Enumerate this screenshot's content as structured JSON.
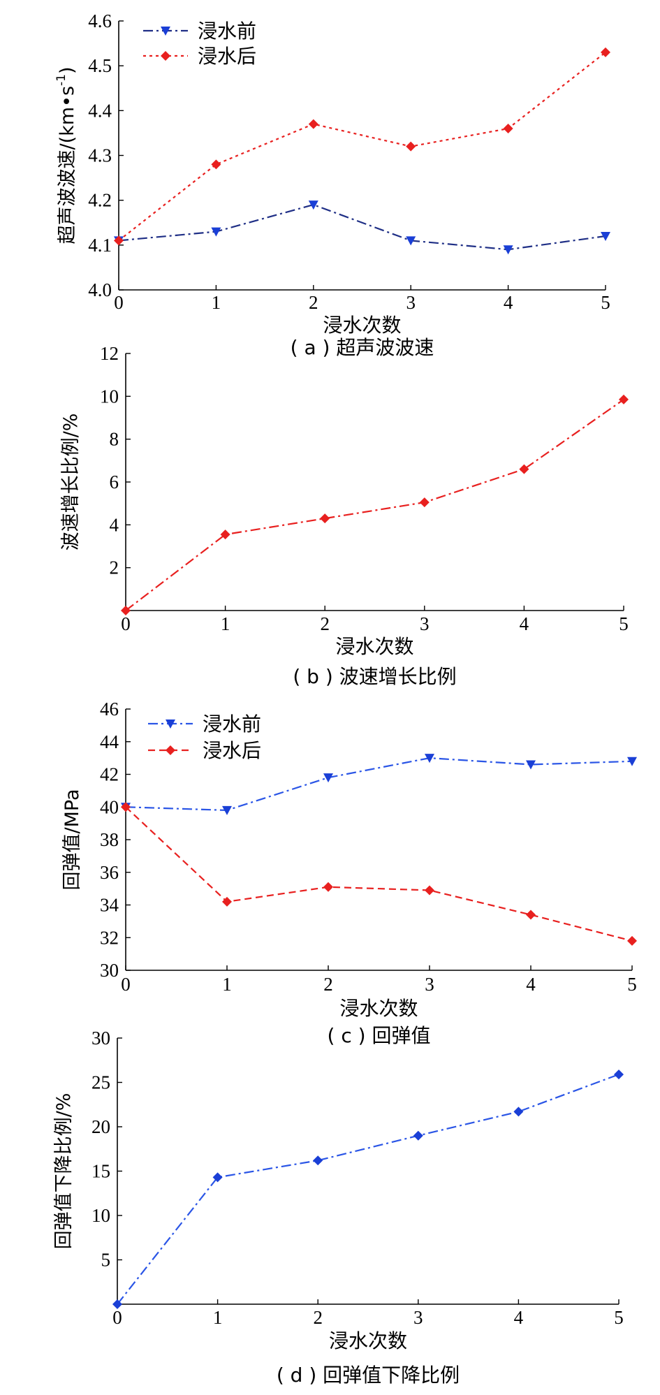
{
  "chart_data": [
    {
      "type": "line",
      "caption": "( a ) 超声波波速",
      "xlabel": "浸水次数",
      "ylabel": "超声波波速/(km•s",
      "ylabel_sup": "-1",
      "ylabel_close": ")",
      "x": [
        0,
        1,
        2,
        3,
        4,
        5
      ],
      "xlim": [
        0,
        5
      ],
      "ylim": [
        4.0,
        4.6
      ],
      "xticks": [
        "0",
        "1",
        "2",
        "3",
        "4",
        "5"
      ],
      "yticks": [
        "4.0",
        "4.1",
        "4.2",
        "4.3",
        "4.4",
        "4.5",
        "4.6"
      ],
      "legend": "top-left",
      "grid": false,
      "series": [
        {
          "name": "浸水前",
          "values": [
            4.11,
            4.13,
            4.19,
            4.11,
            4.09,
            4.12
          ],
          "color": "#1a3fd6",
          "line_color": "#1f2f86",
          "marker": "triangle-down",
          "dash": "dash-dot"
        },
        {
          "name": "浸水后",
          "values": [
            4.11,
            4.28,
            4.37,
            4.32,
            4.36,
            4.53
          ],
          "color": "#e8201f",
          "line_color": "#e8201f",
          "marker": "diamond",
          "dash": "dot"
        }
      ]
    },
    {
      "type": "line",
      "caption": "( b ) 波速增长比例",
      "xlabel": "浸水次数",
      "ylabel": "波速增长比例/%",
      "x": [
        0,
        1,
        2,
        3,
        4,
        5
      ],
      "xlim": [
        0,
        5
      ],
      "ylim": [
        0,
        12
      ],
      "xticks": [
        "0",
        "1",
        "2",
        "3",
        "4",
        "5"
      ],
      "yticks": [
        "",
        "2",
        "4",
        "6",
        "8",
        "10",
        "12"
      ],
      "grid": false,
      "series": [
        {
          "values": [
            0,
            3.55,
            4.3,
            5.05,
            6.6,
            9.85
          ],
          "color": "#e8201f",
          "line_color": "#e8201f",
          "marker": "diamond",
          "dash": "dash-dot"
        }
      ]
    },
    {
      "type": "line",
      "caption": "( c ) 回弹值",
      "xlabel": "浸水次数",
      "ylabel": "回弹值/MPa",
      "x": [
        0,
        1,
        2,
        3,
        4,
        5
      ],
      "xlim": [
        0,
        5
      ],
      "ylim": [
        30,
        46
      ],
      "xticks": [
        "0",
        "1",
        "2",
        "3",
        "4",
        "5"
      ],
      "yticks": [
        "30",
        "32",
        "34",
        "36",
        "38",
        "40",
        "42",
        "44",
        "46"
      ],
      "legend": "top-left",
      "grid": false,
      "series": [
        {
          "name": "浸水前",
          "values": [
            40.0,
            39.8,
            41.8,
            43.0,
            42.6,
            42.8
          ],
          "color": "#1a3fd6",
          "line_color": "#2a55e6",
          "marker": "triangle-down",
          "dash": "dash-dot"
        },
        {
          "name": "浸水后",
          "values": [
            40.0,
            34.2,
            35.1,
            34.9,
            33.4,
            31.8
          ],
          "color": "#e8201f",
          "line_color": "#e8201f",
          "marker": "diamond",
          "dash": "dash"
        }
      ]
    },
    {
      "type": "line",
      "caption": "( d ) 回弹值下降比例",
      "xlabel": "浸水次数",
      "ylabel": "回弹值下降比例/%",
      "x": [
        0,
        1,
        2,
        3,
        4,
        5
      ],
      "xlim": [
        0,
        5
      ],
      "ylim": [
        0,
        30
      ],
      "xticks": [
        "0",
        "1",
        "2",
        "3",
        "4",
        "5"
      ],
      "yticks": [
        "",
        "5",
        "10",
        "15",
        "20",
        "25",
        "30"
      ],
      "grid": false,
      "series": [
        {
          "values": [
            0,
            14.3,
            16.2,
            19.0,
            21.7,
            25.9
          ],
          "color": "#1a3fd6",
          "line_color": "#2a55e6",
          "marker": "diamond",
          "dash": "dash-dot"
        }
      ]
    }
  ]
}
